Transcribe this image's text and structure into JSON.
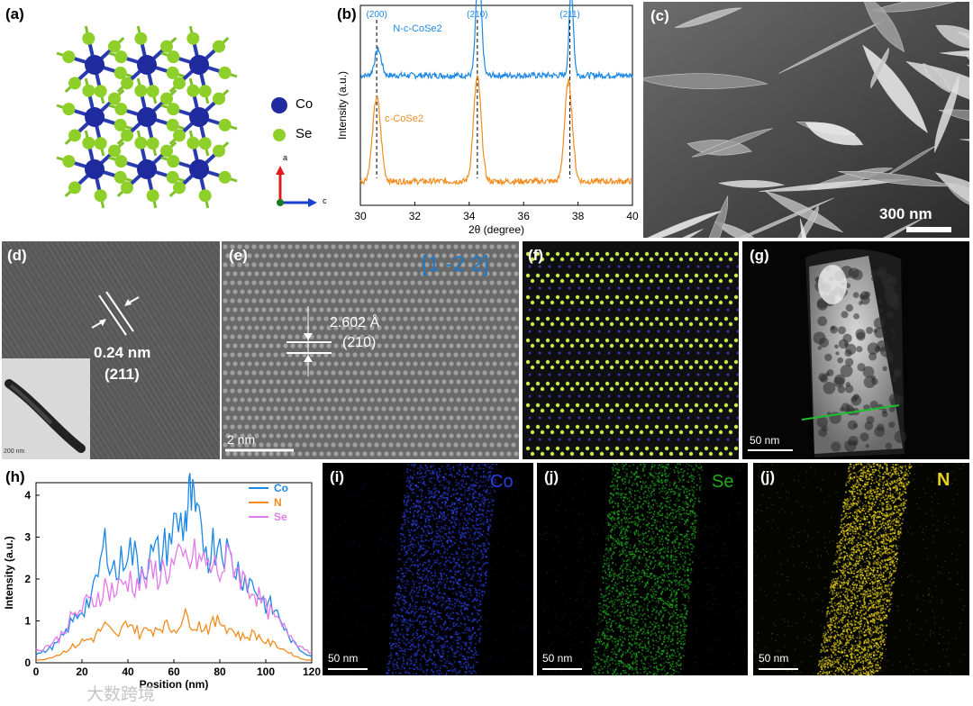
{
  "panels": {
    "a": {
      "label": "(a)",
      "legend": [
        {
          "name": "Co",
          "color": "#1f2a9e"
        },
        {
          "name": "Se",
          "color": "#8fcf2a"
        }
      ],
      "axes": {
        "a": "a",
        "c": "c"
      }
    },
    "b": {
      "label": "(b)"
    },
    "c": {
      "label": "(c)",
      "scale": "300 nm"
    },
    "d": {
      "label": "(d)",
      "spacing": "0.24 nm",
      "plane": "(211)",
      "inset_scale": "200 nm"
    },
    "e": {
      "label": "(e)",
      "zone": "[1 -2 2]",
      "spacing": "2.602 Å",
      "plane": "(210)",
      "scale": "2 nm"
    },
    "f": {
      "label": "(f)"
    },
    "g": {
      "label": "(g)",
      "scale": "50 nm"
    },
    "h": {
      "label": "(h)"
    },
    "i": {
      "label": "(i)",
      "element": "Co",
      "scale": "50 nm",
      "color": "#2a3fe0"
    },
    "j1": {
      "label": "(j)",
      "element": "Se",
      "scale": "50 nm",
      "color": "#1faa1f"
    },
    "j2": {
      "label": "(j)",
      "element": "N",
      "scale": "50 nm",
      "color": "#e6d21a"
    }
  },
  "watermark": "大数跨境",
  "chart_data": [
    {
      "type": "line",
      "panel": "b",
      "xlabel": "2θ (degree)",
      "ylabel": "Intensity (a.u.)",
      "xlim": [
        30,
        40
      ],
      "xticks": [
        30,
        32,
        34,
        36,
        38,
        40
      ],
      "peak_labels": [
        {
          "x": 30.6,
          "text": "(200)"
        },
        {
          "x": 34.3,
          "text": "(210)"
        },
        {
          "x": 37.7,
          "text": "(211)"
        }
      ],
      "series": [
        {
          "name": "N-c-CoSe2",
          "color": "#1e88e5",
          "baseline": 0.65,
          "peaks": [
            {
              "x": 30.65,
              "h": 0.13,
              "w": 0.12
            },
            {
              "x": 34.35,
              "h": 0.55,
              "w": 0.1
            },
            {
              "x": 37.75,
              "h": 0.42,
              "w": 0.08
            }
          ]
        },
        {
          "name": "c-CoSe2",
          "color": "#f28c1e",
          "baseline": 0.12,
          "peaks": [
            {
              "x": 30.6,
              "h": 0.42,
              "w": 0.15
            },
            {
              "x": 34.3,
              "h": 0.52,
              "w": 0.14
            },
            {
              "x": 37.65,
              "h": 0.5,
              "w": 0.14
            }
          ]
        }
      ]
    },
    {
      "type": "line",
      "panel": "h",
      "xlabel": "Position (nm)",
      "ylabel": "Intensity (a.u.)",
      "xlim": [
        0,
        120
      ],
      "ylim": [
        0,
        4.3
      ],
      "xticks": [
        0,
        20,
        40,
        60,
        80,
        100,
        120
      ],
      "yticks": [
        0,
        1,
        2,
        3,
        4
      ],
      "legend_position": "top-right",
      "series": [
        {
          "name": "Co",
          "color": "#1e88e5",
          "x": [
            0,
            5,
            10,
            15,
            20,
            25,
            30,
            35,
            40,
            45,
            50,
            55,
            60,
            65,
            67,
            70,
            75,
            80,
            85,
            90,
            95,
            100,
            105,
            110,
            115,
            120
          ],
          "y": [
            0.2,
            0.3,
            0.5,
            0.9,
            1.3,
            1.6,
            2.9,
            2.1,
            2.8,
            2.3,
            2.5,
            2.6,
            3.2,
            3.4,
            4.0,
            3.3,
            2.7,
            3.0,
            2.4,
            2.1,
            1.8,
            1.4,
            1.2,
            0.6,
            0.3,
            0.15
          ]
        },
        {
          "name": "N",
          "color": "#f28c1e",
          "x": [
            0,
            5,
            10,
            15,
            20,
            25,
            30,
            35,
            40,
            45,
            50,
            55,
            60,
            65,
            70,
            75,
            80,
            85,
            90,
            95,
            100,
            105,
            110,
            115,
            120
          ],
          "y": [
            0.05,
            0.1,
            0.2,
            0.35,
            0.5,
            0.6,
            0.9,
            0.6,
            1.0,
            0.7,
            0.8,
            0.9,
            0.8,
            1.1,
            0.9,
            0.85,
            1.0,
            0.8,
            0.6,
            0.7,
            0.5,
            0.4,
            0.25,
            0.1,
            0.05
          ]
        },
        {
          "name": "Se",
          "color": "#e27ae9",
          "x": [
            0,
            5,
            10,
            15,
            20,
            25,
            30,
            35,
            40,
            45,
            50,
            55,
            60,
            65,
            70,
            75,
            80,
            85,
            90,
            95,
            100,
            105,
            110,
            115,
            120
          ],
          "y": [
            0.3,
            0.4,
            0.6,
            1.0,
            1.3,
            1.5,
            1.8,
            1.7,
            2.0,
            1.9,
            2.1,
            2.2,
            2.3,
            2.4,
            2.5,
            2.3,
            2.2,
            2.5,
            2.0,
            1.7,
            1.3,
            1.0,
            0.7,
            0.4,
            0.25
          ]
        }
      ]
    }
  ]
}
